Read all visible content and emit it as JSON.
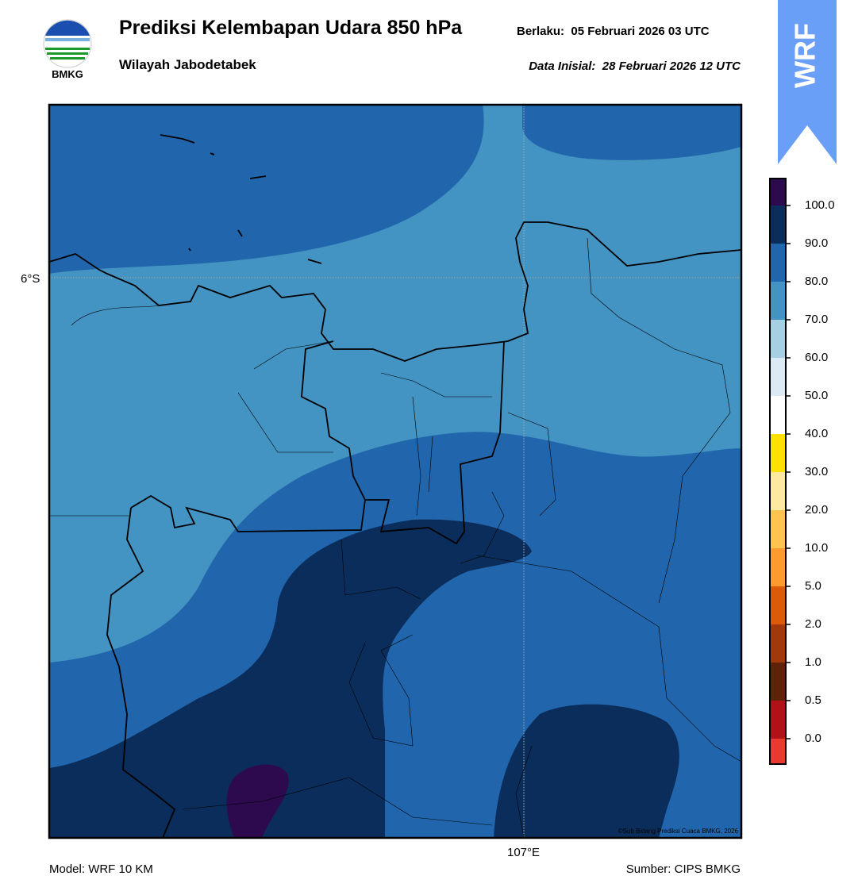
{
  "header": {
    "title": "Prediksi Kelembapan Udara 850 hPa",
    "valid": "Berlaku:  05 Februari 2026 03 UTC",
    "subtitle": "Wilayah Jabodetabek",
    "init": "Data Inisial:  28 Februari 2026 12 UTC"
  },
  "logo": {
    "label": "BMKG"
  },
  "badge": {
    "label": "WRF"
  },
  "map": {
    "lat_label": "6°S",
    "lon_label": "107°E",
    "credit": "©Sub Bidang Prediksi Cuaca BMKG, 2026"
  },
  "colorbar": {
    "ticks": [
      "100.0",
      "90.0",
      "80.0",
      "70.0",
      "60.0",
      "50.0",
      "40.0",
      "30.0",
      "20.0",
      "10.0",
      "5.0",
      "2.0",
      "1.0",
      "0.5",
      "0.0"
    ],
    "colors": [
      "#2d0a4e",
      "#0b2d5b",
      "#2166ac",
      "#4393c3",
      "#a6cfe3",
      "#dbeaf4",
      "#ffffff",
      "#ffe100",
      "#ffe8a0",
      "#ffc350",
      "#ff9b2e",
      "#dd5a0a",
      "#a2390a",
      "#5e2208",
      "#b01218",
      "#e83a2f"
    ]
  },
  "footer": {
    "model": "Model: WRF 10 KM",
    "source": "Sumber: CIPS BMKG"
  }
}
